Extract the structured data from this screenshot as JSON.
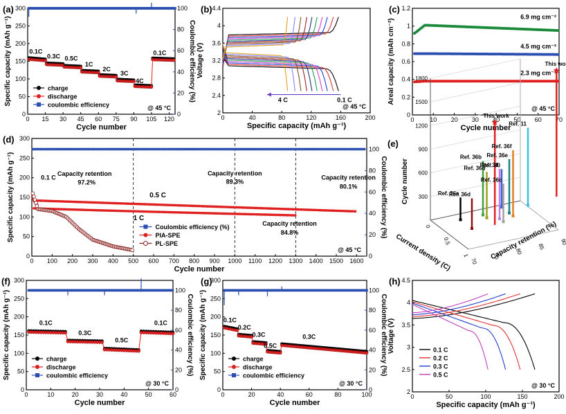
{
  "chart_data": [
    {
      "id": "a",
      "panel_label": "(a)",
      "type": "scatter",
      "xlabel": "Cycle number",
      "ylabel": "Specific capacity (mAh g⁻¹)",
      "y2label": "Coulombic efficiency (%)",
      "xlim": [
        0,
        125
      ],
      "ylim": [
        0,
        300
      ],
      "y2lim": [
        0,
        100
      ],
      "xticks": [
        0,
        15,
        30,
        45,
        60,
        75,
        90,
        105,
        120
      ],
      "yticks": [
        0,
        50,
        100,
        150,
        200,
        250,
        300
      ],
      "y2ticks": [
        0,
        20,
        40,
        60,
        80,
        100
      ],
      "annotation": "@ 45 °C",
      "rate_labels": [
        {
          "text": "0.1C",
          "x": 7,
          "y": 172
        },
        {
          "text": "0.3C",
          "x": 22,
          "y": 158
        },
        {
          "text": "0.5C",
          "x": 37,
          "y": 152
        },
        {
          "text": "1C",
          "x": 52,
          "y": 135
        },
        {
          "text": "2C",
          "x": 67,
          "y": 122
        },
        {
          "text": "3C",
          "x": 82,
          "y": 110
        },
        {
          "text": "4C",
          "x": 95,
          "y": 88
        },
        {
          "text": "0.1C",
          "x": 112,
          "y": 168
        }
      ],
      "capacity_steps": [
        {
          "x0": 1,
          "x1": 15,
          "y0": 158,
          "y1": 154
        },
        {
          "x0": 16,
          "x1": 30,
          "y0": 143,
          "y1": 141
        },
        {
          "x0": 31,
          "x1": 45,
          "y0": 136,
          "y1": 134
        },
        {
          "x0": 46,
          "x1": 60,
          "y0": 122,
          "y1": 120
        },
        {
          "x0": 61,
          "x1": 75,
          "y0": 110,
          "y1": 108
        },
        {
          "x0": 76,
          "x1": 90,
          "y0": 97,
          "y1": 95
        },
        {
          "x0": 91,
          "x1": 105,
          "y0": 81,
          "y1": 79
        },
        {
          "x0": 106,
          "x1": 124,
          "y0": 157,
          "y1": 155
        }
      ],
      "ce": {
        "y": 100,
        "spikes": [
          {
            "x": 1,
            "y": 92
          },
          {
            "x": 92,
            "y": 95
          },
          {
            "x": 105,
            "y": 112
          }
        ]
      },
      "series": [
        {
          "name": "charge",
          "color": "#000000",
          "marker": "circle"
        },
        {
          "name": "discharge",
          "color": "#e02020",
          "marker": "circle"
        },
        {
          "name": "coulombic efficiency",
          "color": "#2b4fb0",
          "marker": "square"
        }
      ],
      "legend": "bottom-left"
    },
    {
      "id": "b",
      "panel_label": "(b)",
      "type": "line",
      "xlabel": "Specific capacity (mAh g⁻¹)",
      "ylabel": "Voltage (V)",
      "xlim": [
        0,
        200
      ],
      "ylim": [
        2.0,
        4.4
      ],
      "xticks": [
        0,
        40,
        80,
        120,
        160,
        200
      ],
      "yticks": [
        2.0,
        2.4,
        2.8,
        3.2,
        3.6,
        4.0,
        4.4
      ],
      "annotation": "@ 45 °C",
      "arrow_labels": [
        "4 C",
        "0.1 C"
      ],
      "curve_families": [
        {
          "rate": "0.1 C",
          "color": "#000000",
          "cap": 157
        },
        {
          "rate": "",
          "color": "#e03030",
          "cap": 150
        },
        {
          "rate": "",
          "color": "#2040d0",
          "cap": 142
        },
        {
          "rate": "",
          "color": "#d040d0",
          "cap": 135
        },
        {
          "rate": "",
          "color": "#20a050",
          "cap": 128
        },
        {
          "rate": "",
          "color": "#203080",
          "cap": 121
        },
        {
          "rate": "",
          "color": "#a02020",
          "cap": 114
        },
        {
          "rate": "",
          "color": "#805020",
          "cap": 106
        },
        {
          "rate": "",
          "color": "#8080ff",
          "cap": 98
        },
        {
          "rate": "4 C",
          "color": "#e0a020",
          "cap": 88
        }
      ]
    },
    {
      "id": "c",
      "panel_label": "(c)",
      "type": "scatter",
      "xlabel": "Cycle number",
      "ylabel": "Areal capacity (mAh cm⁻²)",
      "xlim": [
        0,
        70
      ],
      "ylim": [
        0.0,
        1.2
      ],
      "xticks": [
        0,
        10,
        20,
        30,
        40,
        50,
        60,
        70
      ],
      "yticks": [
        0.0,
        0.2,
        0.4,
        0.6,
        0.8,
        1.0,
        1.2
      ],
      "annotation": "@ 45 °C",
      "series": [
        {
          "name": "6.9 mg cm⁻²",
          "color": "#1a8a3a",
          "start": 0.9,
          "peak": 1.01,
          "end": 0.95
        },
        {
          "name": "4.5 mg cm⁻²",
          "color": "#2b4fb0",
          "start": 0.69,
          "peak": 0.69,
          "end": 0.68
        },
        {
          "name": "2.3 mg cm⁻²",
          "color": "#e02020",
          "start": 0.37,
          "peak": 0.38,
          "end": 0.38
        }
      ]
    },
    {
      "id": "d",
      "panel_label": "(d)",
      "type": "scatter",
      "xlabel": "Cycle number",
      "ylabel": "Specific capacity (mAh g⁻¹)",
      "y2label": "Coulombic efficiency (%)",
      "xlim": [
        0,
        1650
      ],
      "ylim": [
        0,
        300
      ],
      "y2lim": [
        0,
        110
      ],
      "xticks": [
        0,
        100,
        200,
        300,
        400,
        500,
        600,
        700,
        800,
        900,
        1000,
        1100,
        1200,
        1300,
        1400,
        1500,
        1600
      ],
      "yticks": [
        0,
        50,
        100,
        150,
        200,
        250,
        300
      ],
      "y2ticks": [
        0,
        20,
        40,
        60,
        80,
        100
      ],
      "annotation": "@ 45 °C",
      "vlines": [
        500,
        1000,
        1300
      ],
      "texts": [
        "0.1 C",
        "0.5 C",
        "1 C",
        "Capacity retention",
        "97.2%",
        "Capacity retention",
        "89.3%",
        "Capacity retention",
        "80.1%",
        "Capacity retention",
        "84.8%"
      ],
      "pia_05c": {
        "x0": 10,
        "x1": 1600,
        "y0": 142,
        "y1": 114
      },
      "pia_1c": {
        "x0": 10,
        "x1": 1300,
        "y0": 122,
        "y1": 104
      },
      "pl_spe": {
        "points": [
          [
            5,
            160
          ],
          [
            30,
            120
          ],
          [
            100,
            115
          ],
          [
            170,
            100
          ],
          [
            230,
            70
          ],
          [
            300,
            42
          ],
          [
            400,
            25
          ],
          [
            500,
            15
          ]
        ]
      },
      "ce_y": 100,
      "series": [
        {
          "name": "Coulombic efficiency (%)",
          "color": "#2b4fb0",
          "marker": "square"
        },
        {
          "name": "PIA-SPE",
          "color": "#e02020",
          "marker": "circle"
        },
        {
          "name": "PL-SPE",
          "color": "#8a2020",
          "marker": "open-circle"
        }
      ],
      "legend": "bottom-center"
    },
    {
      "id": "e",
      "panel_label": "(e)",
      "type": "bar",
      "projection": "3d",
      "xlabel": "Current density (C)",
      "ylabel": "Capacity retention (%)",
      "zlabel": "Cycle number",
      "zlim": [
        0,
        1800
      ],
      "zticks": [
        300,
        600,
        900,
        1200,
        1500,
        1800
      ],
      "xticks": [
        0.0,
        0.5,
        1.0
      ],
      "yticks": [
        70,
        75,
        80,
        85,
        90
      ],
      "entries": [
        {
          "label": "This work",
          "current": 0.1,
          "retention": 97.2,
          "cycles": 1600,
          "color": "#e02020"
        },
        {
          "label": "This work",
          "current": 0.5,
          "retention": 80.1,
          "cycles": 1300,
          "color": "#e02020"
        },
        {
          "label": "Ref. 11",
          "current": 0.2,
          "retention": 90,
          "cycles": 1000,
          "color": "#40c0e0"
        },
        {
          "label": "Ref. 36f",
          "current": 0.4,
          "retention": 85,
          "cycles": 850,
          "color": "#e08020"
        },
        {
          "label": "Ref. 36b",
          "current": 0.2,
          "retention": 80,
          "cycles": 700,
          "color": "#40a040"
        },
        {
          "label": "Ref. 36e",
          "current": 0.3,
          "retention": 85,
          "cycles": 700,
          "color": "#208080"
        },
        {
          "label": "Ref. 34",
          "current": 0.4,
          "retention": 82,
          "cycles": 650,
          "color": "#c080e0"
        },
        {
          "label": "Ref. 36d",
          "current": 0.3,
          "retention": 80,
          "cycles": 600,
          "color": "#a0a020"
        },
        {
          "label": "Ref. 30",
          "current": 0.1,
          "retention": 85,
          "cycles": 500,
          "color": "#4060e0"
        },
        {
          "label": "Ref. 36c",
          "current": 0.5,
          "retention": 82,
          "cycles": 500,
          "color": "#a0a0a0"
        },
        {
          "label": "Ref. 36d",
          "current": 0.5,
          "retention": 75,
          "cycles": 400,
          "color": "#8a1010"
        },
        {
          "label": "Ref. 36a",
          "current": 0.2,
          "retention": 75,
          "cycles": 300,
          "color": "#000000"
        }
      ]
    },
    {
      "id": "f",
      "panel_label": "(f)",
      "type": "scatter",
      "xlabel": "Cycle number",
      "ylabel": "Specific capacity (mAh g⁻¹)",
      "y2label": "Coulombic efficiency (%)",
      "xlim": [
        0,
        60
      ],
      "ylim": [
        0,
        300
      ],
      "y2lim": [
        0,
        110
      ],
      "xticks": [
        0,
        10,
        20,
        30,
        40,
        50,
        60
      ],
      "yticks": [
        0,
        50,
        100,
        150,
        200,
        250,
        300
      ],
      "y2ticks": [
        0,
        20,
        40,
        60,
        80,
        100
      ],
      "annotation": "@ 30 °C",
      "rate_labels": [
        {
          "text": "0.1C",
          "x": 8,
          "y": 178
        },
        {
          "text": "0.3C",
          "x": 24,
          "y": 150
        },
        {
          "text": "0.5C",
          "x": 39,
          "y": 130
        },
        {
          "text": "0.1C",
          "x": 55,
          "y": 178
        }
      ],
      "capacity_steps": [
        {
          "x0": 1,
          "x1": 16,
          "y0": 160,
          "y1": 158
        },
        {
          "x0": 17,
          "x1": 31,
          "y0": 134,
          "y1": 132
        },
        {
          "x0": 32,
          "x1": 46,
          "y0": 112,
          "y1": 108
        },
        {
          "x0": 47,
          "x1": 60,
          "y0": 159,
          "y1": 156
        }
      ],
      "ce": {
        "y": 100,
        "spikes": [
          {
            "x": 17,
            "y": 95
          },
          {
            "x": 32,
            "y": 95
          },
          {
            "x": 47,
            "y": 112
          }
        ]
      },
      "series": [
        {
          "name": "charge",
          "color": "#000000",
          "marker": "circle"
        },
        {
          "name": "discharge",
          "color": "#e02020",
          "marker": "circle"
        },
        {
          "name": "coulombic efficiency",
          "color": "#2b4fb0",
          "marker": "square"
        }
      ],
      "legend": "bottom-left"
    },
    {
      "id": "g",
      "panel_label": "(g)",
      "type": "scatter",
      "xlabel": "Cycle number",
      "ylabel": "Specific capacity (mAh g⁻¹)",
      "y2label": "Coulombic efficiency (%)",
      "xlim": [
        0,
        100
      ],
      "ylim": [
        0,
        300
      ],
      "y2lim": [
        0,
        110
      ],
      "xticks": [
        0,
        20,
        40,
        60,
        80,
        100
      ],
      "yticks": [
        0,
        50,
        100,
        150,
        200,
        250,
        300
      ],
      "y2ticks": [
        0,
        20,
        40,
        60,
        80,
        100
      ],
      "annotation": "@ 30 °C",
      "rate_labels": [
        {
          "text": "0.1C",
          "x": 5,
          "y": 185
        },
        {
          "text": "0.2C",
          "x": 15,
          "y": 165
        },
        {
          "text": "0.3C",
          "x": 25,
          "y": 145
        },
        {
          "text": "0.5C",
          "x": 33,
          "y": 115
        },
        {
          "text": "0.3C",
          "x": 60,
          "y": 140
        }
      ],
      "capacity_steps": [
        {
          "x0": 1,
          "x1": 10,
          "y0": 172,
          "y1": 165
        },
        {
          "x0": 11,
          "x1": 20,
          "y0": 150,
          "y1": 147
        },
        {
          "x0": 21,
          "x1": 30,
          "y0": 130,
          "y1": 127
        },
        {
          "x0": 31,
          "x1": 40,
          "y0": 106,
          "y1": 103
        },
        {
          "x0": 41,
          "x1": 100,
          "y0": 124,
          "y1": 103
        }
      ],
      "ce": {
        "y": 100,
        "spikes": [
          {
            "x": 1,
            "y": 85
          },
          {
            "x": 11,
            "y": 95
          },
          {
            "x": 31,
            "y": 94
          },
          {
            "x": 41,
            "y": 104
          }
        ]
      },
      "series": [
        {
          "name": "charge",
          "color": "#000000",
          "marker": "circle"
        },
        {
          "name": "discharge",
          "color": "#e02020",
          "marker": "circle"
        },
        {
          "name": "coulombic efficiency",
          "color": "#2b4fb0",
          "marker": "square"
        }
      ],
      "legend": "bottom-left"
    },
    {
      "id": "h",
      "panel_label": "(h)",
      "type": "line",
      "xlabel": "Specific capacity (mAh g⁻¹)",
      "ylabel": "Voltage (V)",
      "xlim": [
        0,
        200
      ],
      "ylim": [
        2.0,
        4.5
      ],
      "xticks": [
        0,
        50,
        100,
        150,
        200
      ],
      "yticks": [
        2.0,
        2.5,
        3.0,
        3.5,
        4.0,
        4.5
      ],
      "annotation": "@ 30 °C",
      "series": [
        {
          "name": "0.1 C",
          "color": "#000000",
          "cap": 167
        },
        {
          "name": "0.2 C",
          "color": "#e03030",
          "cap": 147
        },
        {
          "name": "0.3 C",
          "color": "#2040d0",
          "cap": 127
        },
        {
          "name": "0.5 C",
          "color": "#c040c0",
          "cap": 103
        }
      ],
      "legend": "bottom-left"
    }
  ]
}
